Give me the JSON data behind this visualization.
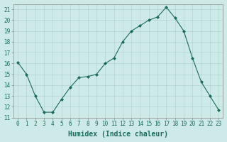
{
  "x": [
    0,
    1,
    2,
    3,
    4,
    5,
    6,
    7,
    8,
    9,
    10,
    11,
    12,
    13,
    14,
    15,
    16,
    17,
    18,
    19,
    20,
    21,
    22,
    23
  ],
  "y": [
    16.1,
    15.0,
    13.0,
    11.5,
    11.5,
    12.7,
    13.8,
    14.7,
    14.8,
    15.0,
    16.0,
    16.5,
    18.0,
    19.0,
    19.5,
    20.0,
    20.3,
    21.2,
    20.2,
    19.0,
    16.5,
    14.3,
    13.0,
    11.7
  ],
  "line_color": "#1a6b5a",
  "marker": "D",
  "marker_size": 2.0,
  "bg_color": "#ceeae8",
  "grid_color": "#b0d4d0",
  "xlabel": "Humidex (Indice chaleur)",
  "xlim": [
    -0.5,
    23.5
  ],
  "ylim": [
    11,
    21.5
  ],
  "yticks": [
    11,
    12,
    13,
    14,
    15,
    16,
    17,
    18,
    19,
    20,
    21
  ],
  "xtick_labels": [
    "0",
    "1",
    "2",
    "3",
    "4",
    "5",
    "6",
    "7",
    "8",
    "9",
    "10",
    "11",
    "12",
    "13",
    "14",
    "15",
    "16",
    "17",
    "18",
    "19",
    "20",
    "21",
    "22",
    "23"
  ],
  "tick_fontsize": 5.5,
  "xlabel_fontsize": 7.0
}
